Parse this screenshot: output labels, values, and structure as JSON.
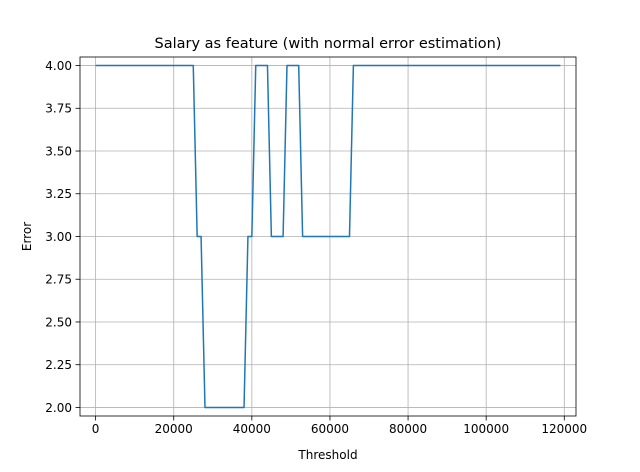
{
  "chart_data": {
    "type": "line",
    "title": "Salary as feature (with normal error estimation)",
    "xlabel": "Threshold",
    "ylabel": "Error",
    "xlim": [
      -4000,
      123000
    ],
    "ylim": [
      1.95,
      4.05
    ],
    "grid": true,
    "xticks": [
      0,
      20000,
      40000,
      60000,
      80000,
      100000,
      120000
    ],
    "xtick_labels": [
      "0",
      "20000",
      "40000",
      "60000",
      "80000",
      "100000",
      "120000"
    ],
    "yticks": [
      2.0,
      2.25,
      2.5,
      2.75,
      3.0,
      3.25,
      3.5,
      3.75,
      4.0
    ],
    "ytick_labels": [
      "2.00",
      "2.25",
      "2.50",
      "2.75",
      "3.00",
      "3.25",
      "3.50",
      "3.75",
      "4.00"
    ],
    "series": [
      {
        "color": "#1f77b4",
        "x": [
          0,
          25000,
          26000,
          27000,
          28000,
          38000,
          39000,
          40000,
          41000,
          44000,
          45000,
          48000,
          49000,
          52000,
          53000,
          65000,
          66000,
          119000
        ],
        "y": [
          4,
          4,
          3,
          3,
          2,
          2,
          3,
          3,
          4,
          4,
          3,
          3,
          4,
          4,
          3,
          3,
          4,
          4
        ]
      }
    ]
  }
}
